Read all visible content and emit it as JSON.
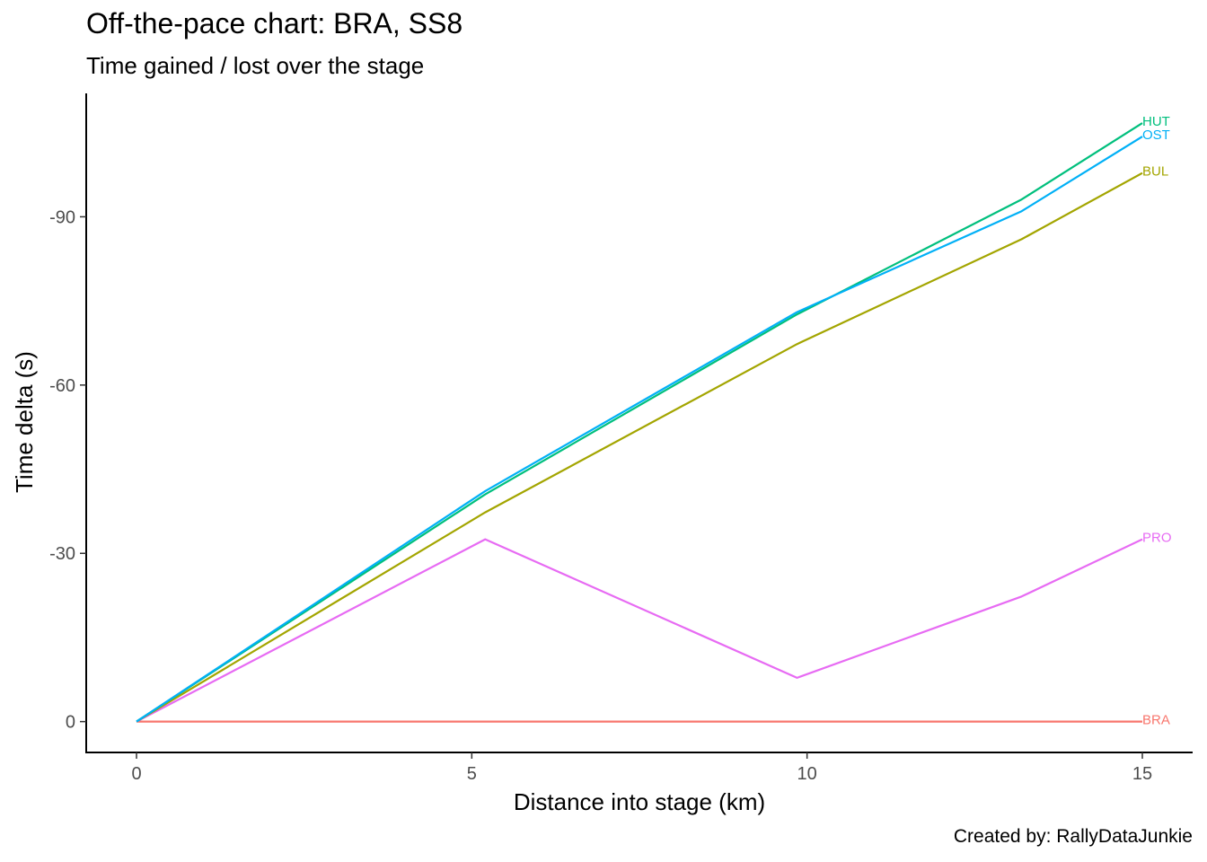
{
  "chart_data": {
    "type": "line",
    "title": "Off-the-pace chart: BRA, SS8",
    "subtitle": "Time gained / lost over the stage",
    "caption": "Created by: RallyDataJunkie",
    "xlabel": "Distance into stage (km)",
    "ylabel": "Time delta (s)",
    "xlim": [
      -0.75,
      15.75
    ],
    "ylim": [
      5.5,
      -112
    ],
    "x_ticks": [
      0,
      5,
      10,
      15
    ],
    "x_tick_labels": [
      "0",
      "5",
      "10",
      "15"
    ],
    "y_ticks": [
      0,
      -30,
      -60,
      -90
    ],
    "y_tick_labels": [
      "0",
      "-30",
      "-60",
      "-90"
    ],
    "y_reversed": true,
    "grid": false,
    "legend": "none (direct end labels)",
    "series": [
      {
        "name": "BRA",
        "color": "#F8766D",
        "x": [
          0,
          5.2,
          9.85,
          13.2,
          15.0
        ],
        "y": [
          0,
          0,
          0,
          0,
          0
        ]
      },
      {
        "name": "PRO",
        "color": "#E76BF3",
        "x": [
          0,
          5.2,
          9.85,
          13.2,
          15.0
        ],
        "y": [
          0,
          -32.5,
          -7.8,
          -22.3,
          -32.5
        ]
      },
      {
        "name": "BUL",
        "color": "#A3A500",
        "x": [
          0,
          5.2,
          9.85,
          13.2,
          15.0
        ],
        "y": [
          0,
          -37.3,
          -67.3,
          -86.0,
          -97.8
        ]
      },
      {
        "name": "HUT",
        "color": "#00BF7D",
        "x": [
          0,
          5.2,
          9.85,
          13.2,
          15.0
        ],
        "y": [
          0,
          -40.5,
          -72.6,
          -93.1,
          -106.7
        ]
      },
      {
        "name": "OST",
        "color": "#00B0F6",
        "x": [
          0,
          5.2,
          9.85,
          13.2,
          15.0
        ],
        "y": [
          0,
          -41.1,
          -73.0,
          -91.0,
          -104.3
        ]
      }
    ]
  }
}
